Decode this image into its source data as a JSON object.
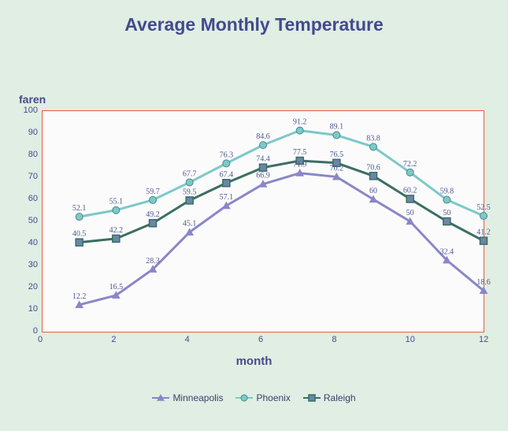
{
  "chart": {
    "type": "line",
    "title": "Average Monthly Temperature",
    "title_fontsize": 23,
    "title_color": "#444a8d",
    "x_label": "month",
    "y_label": "faren",
    "label_fontsize": 15,
    "label_color": "#444a8d",
    "background_color": "#e0eee3",
    "plot_background": "#fbfbfb",
    "plot_border_color": "#e85d3f",
    "xlim": [
      0,
      12
    ],
    "ylim": [
      0,
      100
    ],
    "xticks": [
      0,
      2,
      4,
      6,
      8,
      10,
      12
    ],
    "yticks": [
      0,
      10,
      20,
      30,
      40,
      50,
      60,
      70,
      80,
      90,
      100
    ],
    "tick_fontsize": 11,
    "tick_color": "#444a8d",
    "value_label_fontsize": 10,
    "value_label_color": "#4f5795",
    "x_values": [
      1,
      2,
      3,
      4,
      5,
      6,
      7,
      8,
      9,
      10,
      11,
      12
    ],
    "line_width": 3,
    "marker_size": 9,
    "series": [
      {
        "name": "Minneapolis",
        "color": "#8a86c9",
        "marker": "triangle",
        "fill": "#8a86c9",
        "values": [
          12.2,
          16.5,
          28.3,
          45.1,
          57.1,
          66.9,
          71.9,
          70.2,
          60,
          50,
          32.4,
          18.6
        ]
      },
      {
        "name": "Phoenix",
        "color": "#7dc8c8",
        "marker": "circle",
        "fill": "#7dc8c8",
        "values": [
          52.1,
          55.1,
          59.7,
          67.7,
          76.3,
          84.6,
          91.2,
          89.1,
          83.8,
          72.2,
          59.8,
          52.5
        ]
      },
      {
        "name": "Raleigh",
        "color": "#3b6e63",
        "marker": "square",
        "fill": "#6a86a8",
        "values": [
          40.5,
          42.2,
          49.2,
          59.5,
          67.4,
          74.4,
          77.5,
          76.5,
          70.6,
          60.2,
          50,
          41.2
        ]
      }
    ]
  }
}
